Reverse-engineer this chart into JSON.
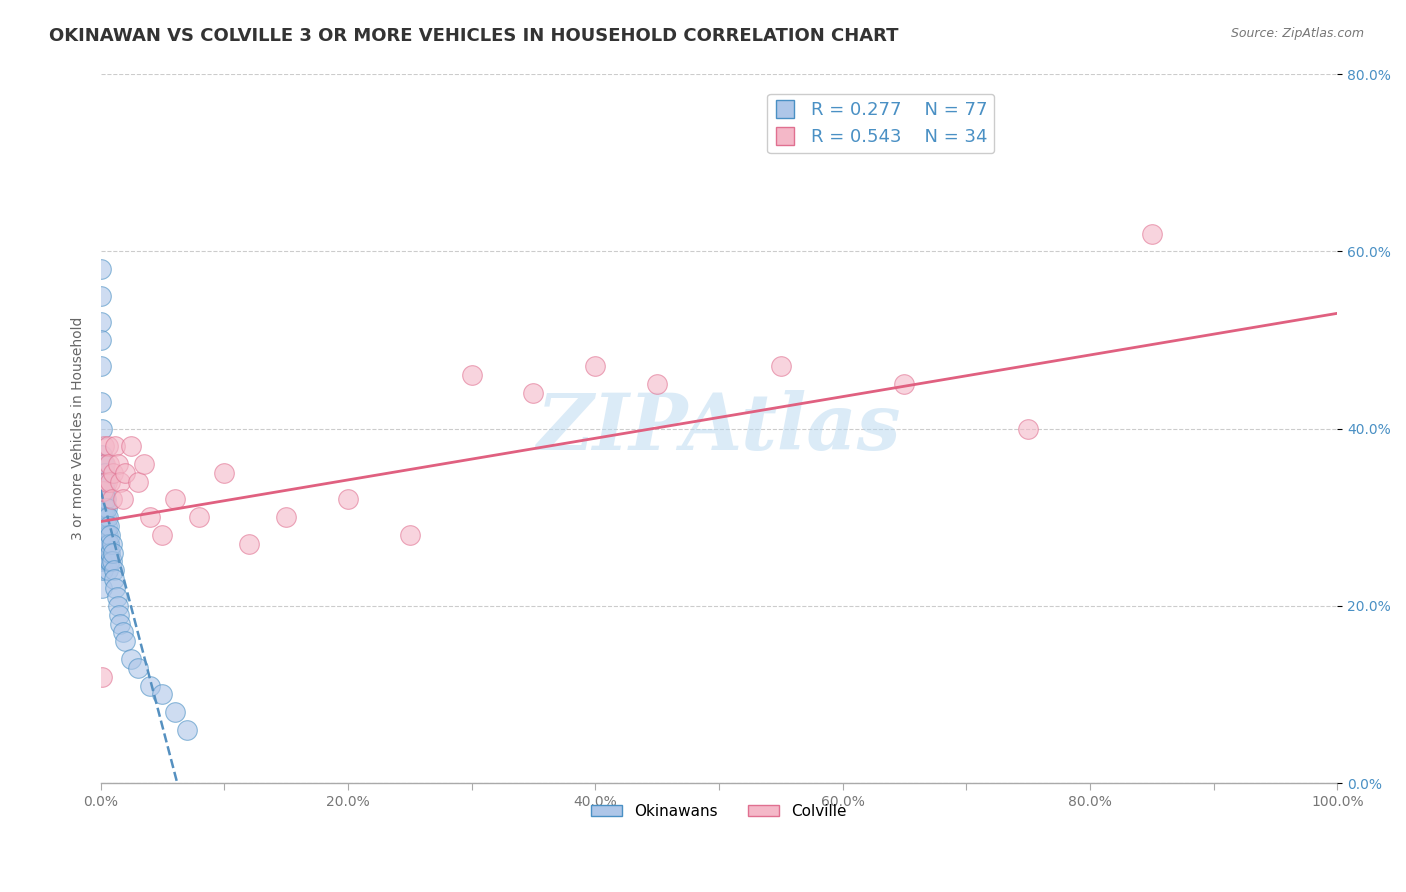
{
  "title": "OKINAWAN VS COLVILLE 3 OR MORE VEHICLES IN HOUSEHOLD CORRELATION CHART",
  "source_text": "Source: ZipAtlas.com",
  "ylabel": "3 or more Vehicles in Household",
  "xlim": [
    0.0,
    1.0
  ],
  "ylim": [
    0.0,
    0.8
  ],
  "xticks": [
    0.0,
    0.1,
    0.2,
    0.3,
    0.4,
    0.5,
    0.6,
    0.7,
    0.8,
    0.9,
    1.0
  ],
  "yticks": [
    0.0,
    0.2,
    0.4,
    0.6,
    0.8
  ],
  "xtick_labels": [
    "0.0%",
    "",
    "20.0%",
    "",
    "40.0%",
    "",
    "60.0%",
    "",
    "80.0%",
    "",
    "100.0%"
  ],
  "ytick_labels_left": [
    "",
    "",
    "",
    "",
    ""
  ],
  "ytick_labels_right": [
    "0.0%",
    "20.0%",
    "40.0%",
    "60.0%",
    "80.0%"
  ],
  "blue_scatter_color": "#aec6e8",
  "blue_edge_color": "#4a90c4",
  "pink_scatter_color": "#f4b8c8",
  "pink_edge_color": "#e07090",
  "blue_line_color": "#5590c0",
  "pink_line_color": "#e06080",
  "watermark_color": "#b8d8f0",
  "legend_label_blue": "Okinawans",
  "legend_label_pink": "Colville",
  "background_color": "#ffffff",
  "grid_color": "#cccccc",
  "title_color": "#333333",
  "tick_color": "#4a90c4",
  "left_tick_color": "#888888",
  "title_fontsize": 13,
  "axis_label_fontsize": 10,
  "tick_fontsize": 10,
  "legend_fontsize": 13,
  "okinawan_x": [
    0.0002,
    0.0003,
    0.0004,
    0.0005,
    0.0006,
    0.0007,
    0.0008,
    0.001,
    0.001,
    0.001,
    0.001,
    0.001,
    0.001,
    0.0012,
    0.0013,
    0.0014,
    0.0015,
    0.0015,
    0.0016,
    0.0017,
    0.0018,
    0.002,
    0.002,
    0.002,
    0.002,
    0.002,
    0.0022,
    0.0023,
    0.0025,
    0.0027,
    0.003,
    0.003,
    0.003,
    0.003,
    0.0032,
    0.0034,
    0.0035,
    0.0037,
    0.004,
    0.004,
    0.004,
    0.0042,
    0.0045,
    0.005,
    0.005,
    0.005,
    0.0052,
    0.0055,
    0.006,
    0.006,
    0.006,
    0.0062,
    0.0065,
    0.007,
    0.007,
    0.007,
    0.0072,
    0.0075,
    0.008,
    0.008,
    0.009,
    0.009,
    0.01,
    0.0105,
    0.011,
    0.012,
    0.013,
    0.014,
    0.015,
    0.016,
    0.018,
    0.02,
    0.025,
    0.03,
    0.04,
    0.05,
    0.06,
    0.07
  ],
  "okinawan_y": [
    0.58,
    0.55,
    0.52,
    0.5,
    0.47,
    0.43,
    0.4,
    0.36,
    0.33,
    0.3,
    0.28,
    0.25,
    0.22,
    0.31,
    0.29,
    0.27,
    0.37,
    0.25,
    0.35,
    0.32,
    0.3,
    0.36,
    0.33,
    0.3,
    0.27,
    0.24,
    0.34,
    0.31,
    0.35,
    0.33,
    0.36,
    0.33,
    0.3,
    0.27,
    0.34,
    0.32,
    0.35,
    0.33,
    0.34,
    0.31,
    0.28,
    0.32,
    0.3,
    0.31,
    0.28,
    0.25,
    0.29,
    0.27,
    0.3,
    0.27,
    0.24,
    0.28,
    0.26,
    0.29,
    0.27,
    0.25,
    0.27,
    0.25,
    0.28,
    0.26,
    0.27,
    0.25,
    0.26,
    0.24,
    0.23,
    0.22,
    0.21,
    0.2,
    0.19,
    0.18,
    0.17,
    0.16,
    0.14,
    0.13,
    0.11,
    0.1,
    0.08,
    0.06
  ],
  "colville_x": [
    0.001,
    0.002,
    0.003,
    0.004,
    0.005,
    0.006,
    0.007,
    0.008,
    0.009,
    0.01,
    0.012,
    0.014,
    0.016,
    0.018,
    0.02,
    0.025,
    0.03,
    0.035,
    0.04,
    0.05,
    0.06,
    0.08,
    0.1,
    0.12,
    0.15,
    0.2,
    0.25,
    0.3,
    0.35,
    0.4,
    0.45,
    0.55,
    0.65,
    0.75,
    0.85
  ],
  "colville_y": [
    0.12,
    0.33,
    0.38,
    0.36,
    0.34,
    0.38,
    0.36,
    0.34,
    0.32,
    0.35,
    0.38,
    0.36,
    0.34,
    0.32,
    0.35,
    0.38,
    0.34,
    0.36,
    0.3,
    0.28,
    0.32,
    0.3,
    0.35,
    0.27,
    0.3,
    0.32,
    0.28,
    0.46,
    0.44,
    0.47,
    0.45,
    0.47,
    0.45,
    0.4,
    0.62
  ],
  "blue_trendline_x": [
    0.0,
    0.08
  ],
  "pink_trendline_x": [
    0.0,
    1.0
  ],
  "pink_trendline_y_start": 0.295,
  "pink_trendline_y_end": 0.53
}
